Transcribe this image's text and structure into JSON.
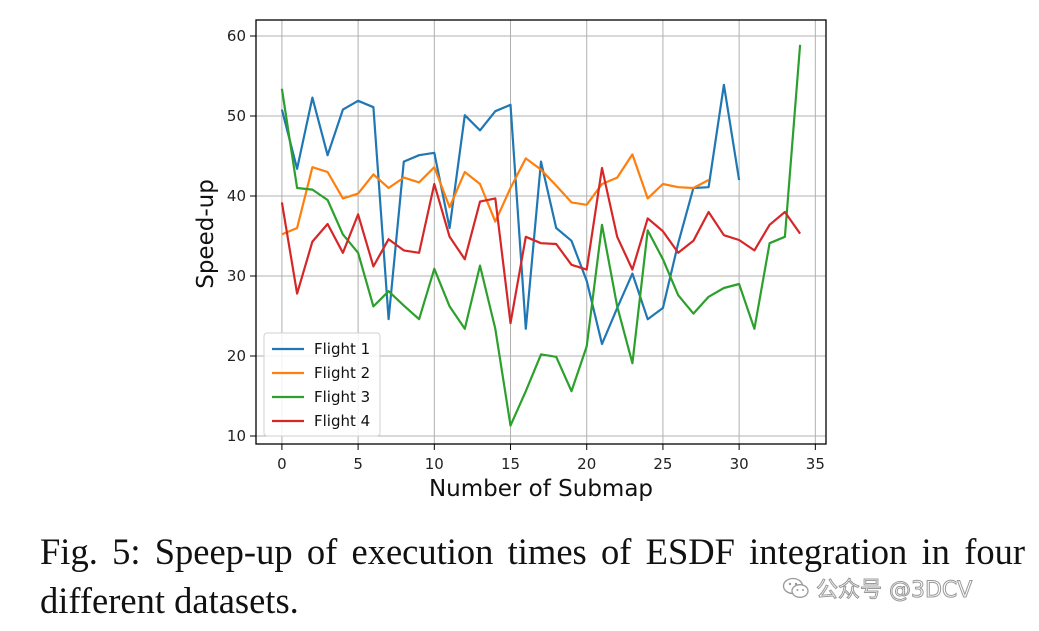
{
  "chart_data": {
    "type": "line",
    "xlabel": "Number of Submap",
    "ylabel": "Speed-up",
    "xlim": [
      -1.7,
      35.7
    ],
    "ylim": [
      9,
      62
    ],
    "xticks": [
      0,
      5,
      10,
      15,
      20,
      25,
      30,
      35
    ],
    "yticks": [
      10,
      20,
      30,
      40,
      50,
      60
    ],
    "grid": true,
    "legend_position": "lower-left",
    "series": [
      {
        "name": "Flight 1",
        "color": "#1f77b4",
        "x": [
          0,
          1,
          2,
          3,
          4,
          5,
          6,
          7,
          8,
          9,
          10,
          11,
          12,
          13,
          14,
          15,
          16,
          17,
          18,
          19,
          20,
          21,
          22,
          23,
          24,
          25,
          26,
          27,
          28,
          29,
          30
        ],
        "y": [
          50.8,
          43.4,
          52.3,
          45.1,
          50.8,
          51.9,
          51.1,
          24.6,
          44.3,
          45.1,
          45.4,
          36.0,
          50.1,
          48.2,
          50.6,
          51.4,
          23.4,
          44.3,
          36.0,
          34.4,
          29.4,
          21.5,
          26.0,
          30.3,
          24.6,
          26.0,
          34.1,
          41.0,
          41.1,
          53.9,
          42.0
        ]
      },
      {
        "name": "Flight 2",
        "color": "#ff7f0e",
        "x": [
          0,
          1,
          2,
          3,
          4,
          5,
          6,
          7,
          8,
          9,
          10,
          11,
          12,
          13,
          14,
          15,
          16,
          17,
          18,
          19,
          20,
          21,
          22,
          23,
          24,
          25,
          26,
          27,
          28
        ],
        "y": [
          35.2,
          36.0,
          43.6,
          43.0,
          39.7,
          40.3,
          42.7,
          41.0,
          42.3,
          41.7,
          43.6,
          38.6,
          43.0,
          41.5,
          36.8,
          41.0,
          44.7,
          43.3,
          41.3,
          39.2,
          38.9,
          41.5,
          42.3,
          45.2,
          39.7,
          41.5,
          41.1,
          41.0,
          42.0
        ]
      },
      {
        "name": "Flight 3",
        "color": "#2ca02c",
        "x": [
          0,
          1,
          2,
          3,
          4,
          5,
          6,
          7,
          8,
          9,
          10,
          11,
          12,
          13,
          14,
          15,
          16,
          17,
          18,
          19,
          20,
          21,
          22,
          23,
          24,
          25,
          26,
          27,
          28,
          29,
          30,
          31,
          32,
          33,
          34
        ],
        "y": [
          53.4,
          41.0,
          40.8,
          39.5,
          35.2,
          32.9,
          26.2,
          28.1,
          26.3,
          24.6,
          30.9,
          26.2,
          23.4,
          31.3,
          23.4,
          11.3,
          15.6,
          20.2,
          19.9,
          15.6,
          21.2,
          36.4,
          26.2,
          19.1,
          35.7,
          32.1,
          27.6,
          25.3,
          27.4,
          28.5,
          29.0,
          23.4,
          34.1,
          34.9,
          58.9
        ]
      },
      {
        "name": "Flight 4",
        "color": "#d62728",
        "x": [
          0,
          1,
          2,
          3,
          4,
          5,
          6,
          7,
          8,
          9,
          10,
          11,
          12,
          13,
          14,
          15,
          16,
          17,
          18,
          19,
          20,
          21,
          22,
          23,
          24,
          25,
          26,
          27,
          28,
          29,
          30,
          31,
          32,
          33,
          34
        ],
        "y": [
          39.2,
          27.8,
          34.3,
          36.5,
          32.9,
          37.7,
          31.2,
          34.6,
          33.2,
          32.9,
          41.5,
          34.9,
          32.1,
          39.3,
          39.7,
          24.1,
          34.9,
          34.1,
          34.0,
          31.4,
          30.8,
          43.5,
          34.9,
          30.8,
          37.2,
          35.6,
          32.9,
          34.4,
          38.0,
          35.1,
          34.5,
          33.2,
          36.4,
          38.0,
          35.3
        ]
      }
    ]
  },
  "caption": {
    "text": "Fig. 5: Speep-up of execution times of ESDF integration in four different datasets."
  },
  "watermark": {
    "text": "公众号 @3DCV",
    "icon": "wechat-icon"
  }
}
